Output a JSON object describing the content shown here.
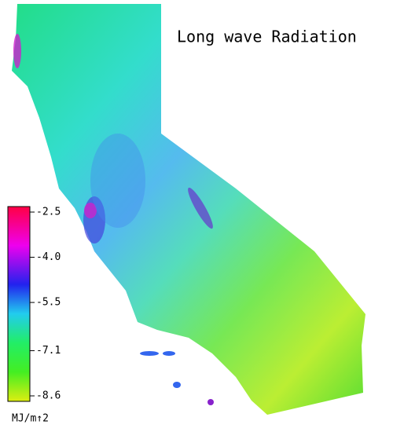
{
  "title": "Long wave Radiation",
  "legend": {
    "range": [
      -2.5,
      -8.6
    ],
    "ticks": [
      -2.5,
      {
        "value": -4,
        "label": "-4.0"
      },
      -5.5,
      -7.1,
      -8.6
    ],
    "unit": "MJ/m↑2"
  }
}
